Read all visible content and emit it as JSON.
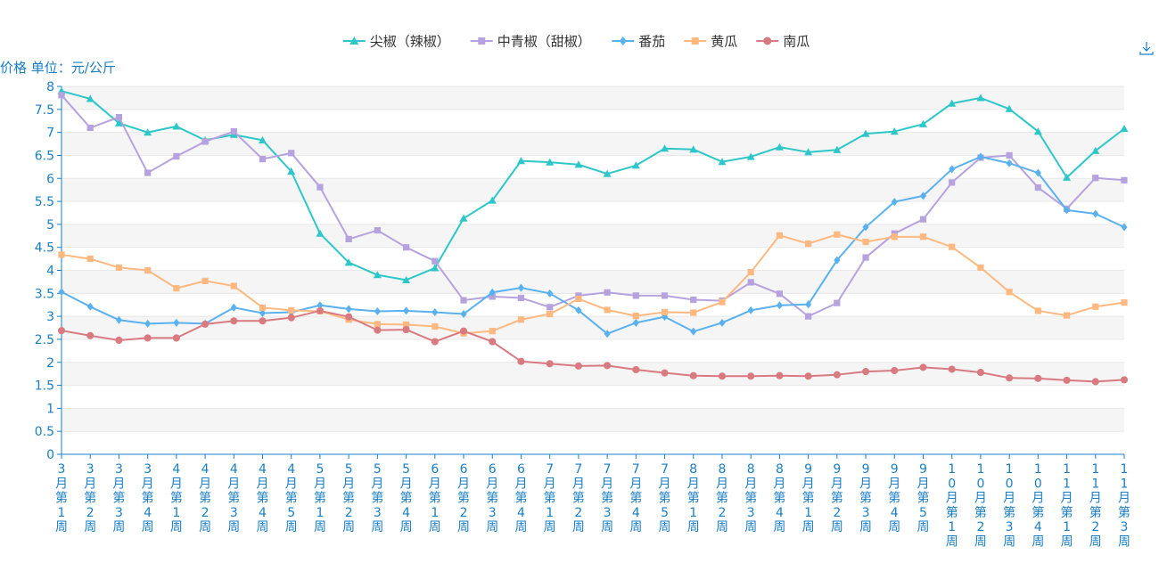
{
  "chart_data": {
    "type": "line",
    "ylabel": "价格 单位：元/公斤",
    "ylim": [
      0,
      8
    ],
    "yticks": [
      "0",
      "0.5",
      "1",
      "1.5",
      "2",
      "2.5",
      "3",
      "3.5",
      "4",
      "4.5",
      "5",
      "5.5",
      "6",
      "6.5",
      "7",
      "7.5",
      "8"
    ],
    "grid": true,
    "legend": "top-center",
    "categories": [
      "3月第1周",
      "3月第2周",
      "3月第3周",
      "3月第4周",
      "4月第1周",
      "4月第2周",
      "4月第3周",
      "4月第4周",
      "4月第5周",
      "5月第1周",
      "5月第2周",
      "5月第3周",
      "5月第4周",
      "6月第1周",
      "6月第2周",
      "6月第3周",
      "6月第4周",
      "7月第1周",
      "7月第2周",
      "7月第3周",
      "7月第4周",
      "7月第5周",
      "8月第1周",
      "8月第2周",
      "8月第3周",
      "8月第4周",
      "9月第1周",
      "9月第2周",
      "9月第3周",
      "9月第4周",
      "9月第5周",
      "10月第1周",
      "10月第2周",
      "10月第3周",
      "10月第4周",
      "11月第1周",
      "11月第2周",
      "11月第3周"
    ],
    "series": [
      {
        "name": "尖椒（辣椒）",
        "color": "#2ec7c9",
        "marker": "triangle",
        "values": [
          7.9,
          7.73,
          7.2,
          7.0,
          7.13,
          6.83,
          6.95,
          6.83,
          6.15,
          4.8,
          4.17,
          3.9,
          3.79,
          4.05,
          5.13,
          5.52,
          6.38,
          6.35,
          6.3,
          6.1,
          6.28,
          6.65,
          6.63,
          6.36,
          6.47,
          6.68,
          6.57,
          6.62,
          6.97,
          7.02,
          7.18,
          7.63,
          7.75,
          7.51,
          7.02,
          6.02,
          6.6,
          7.08
        ]
      },
      {
        "name": "中青椒（甜椒）",
        "color": "#b6a2de",
        "marker": "square",
        "values": [
          7.81,
          7.1,
          7.33,
          6.12,
          6.48,
          6.8,
          7.02,
          6.42,
          6.55,
          5.81,
          4.68,
          4.87,
          4.5,
          4.2,
          3.35,
          3.43,
          3.4,
          3.2,
          3.45,
          3.52,
          3.45,
          3.45,
          3.36,
          3.34,
          3.74,
          3.49,
          3.0,
          3.29,
          4.28,
          4.8,
          5.11,
          5.91,
          6.45,
          6.5,
          5.8,
          5.34,
          6.01,
          5.96
        ]
      },
      {
        "name": "番茄",
        "color": "#5ab1ef",
        "marker": "diamond",
        "values": [
          3.53,
          3.21,
          2.92,
          2.84,
          2.86,
          2.84,
          3.19,
          3.07,
          3.09,
          3.24,
          3.16,
          3.11,
          3.12,
          3.09,
          3.05,
          3.52,
          3.62,
          3.5,
          3.13,
          2.62,
          2.86,
          2.99,
          2.67,
          2.86,
          3.13,
          3.24,
          3.26,
          4.22,
          4.94,
          5.49,
          5.62,
          6.2,
          6.47,
          6.33,
          6.12,
          5.31,
          5.23,
          4.94
        ]
      },
      {
        "name": "黄瓜",
        "color": "#ffb980",
        "marker": "square",
        "values": [
          4.34,
          4.25,
          4.06,
          4.0,
          3.61,
          3.77,
          3.66,
          3.19,
          3.13,
          3.11,
          2.93,
          2.83,
          2.82,
          2.78,
          2.63,
          2.68,
          2.93,
          3.05,
          3.38,
          3.14,
          3.01,
          3.09,
          3.08,
          3.31,
          3.96,
          4.76,
          4.58,
          4.78,
          4.62,
          4.73,
          4.73,
          4.51,
          4.06,
          3.53,
          3.12,
          3.02,
          3.21,
          3.3
        ]
      },
      {
        "name": "南瓜",
        "color": "#d87a80",
        "marker": "circle",
        "values": [
          2.69,
          2.58,
          2.48,
          2.53,
          2.53,
          2.83,
          2.9,
          2.9,
          2.97,
          3.12,
          2.99,
          2.7,
          2.71,
          2.45,
          2.68,
          2.45,
          2.02,
          1.97,
          1.92,
          1.93,
          1.84,
          1.77,
          1.71,
          1.7,
          1.7,
          1.71,
          1.7,
          1.73,
          1.8,
          1.82,
          1.89,
          1.85,
          1.78,
          1.66,
          1.65,
          1.61,
          1.58,
          1.62
        ]
      }
    ]
  },
  "toolbox": {
    "download_icon": "download-icon",
    "color": "#1a7fc6"
  }
}
